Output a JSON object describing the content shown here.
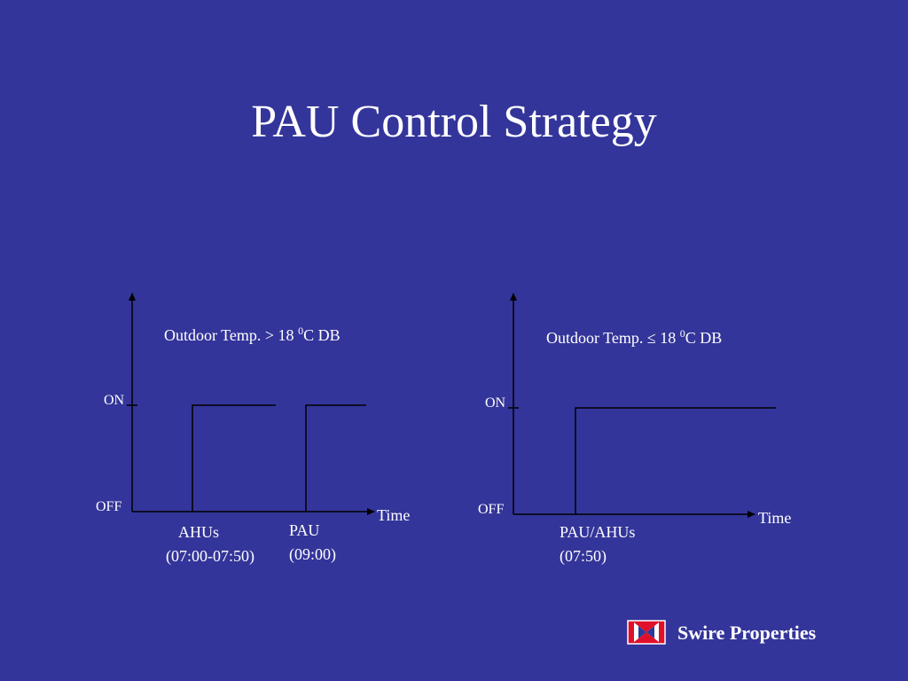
{
  "title": "PAU Control Strategy",
  "diagrams": [
    {
      "condition": {
        "prefix": "Outdoor Temp. > 18 ",
        "sup": "0",
        "suffix": "C DB"
      },
      "on": "ON",
      "off": "OFF",
      "time": "Time",
      "events": [
        {
          "lines": [
            "AHUs",
            "(07:00-07:50)"
          ]
        },
        {
          "lines": [
            "PAU",
            "(09:00)"
          ]
        }
      ]
    },
    {
      "condition": {
        "prefix": "Outdoor Temp. ≤ 18 ",
        "sup": "0",
        "suffix": "C DB"
      },
      "on": "ON",
      "off": "OFF",
      "time": "Time",
      "events": [
        {
          "lines": [
            "PAU/AHUs",
            "(07:50)"
          ]
        }
      ]
    }
  ],
  "logo": "Swire Properties"
}
